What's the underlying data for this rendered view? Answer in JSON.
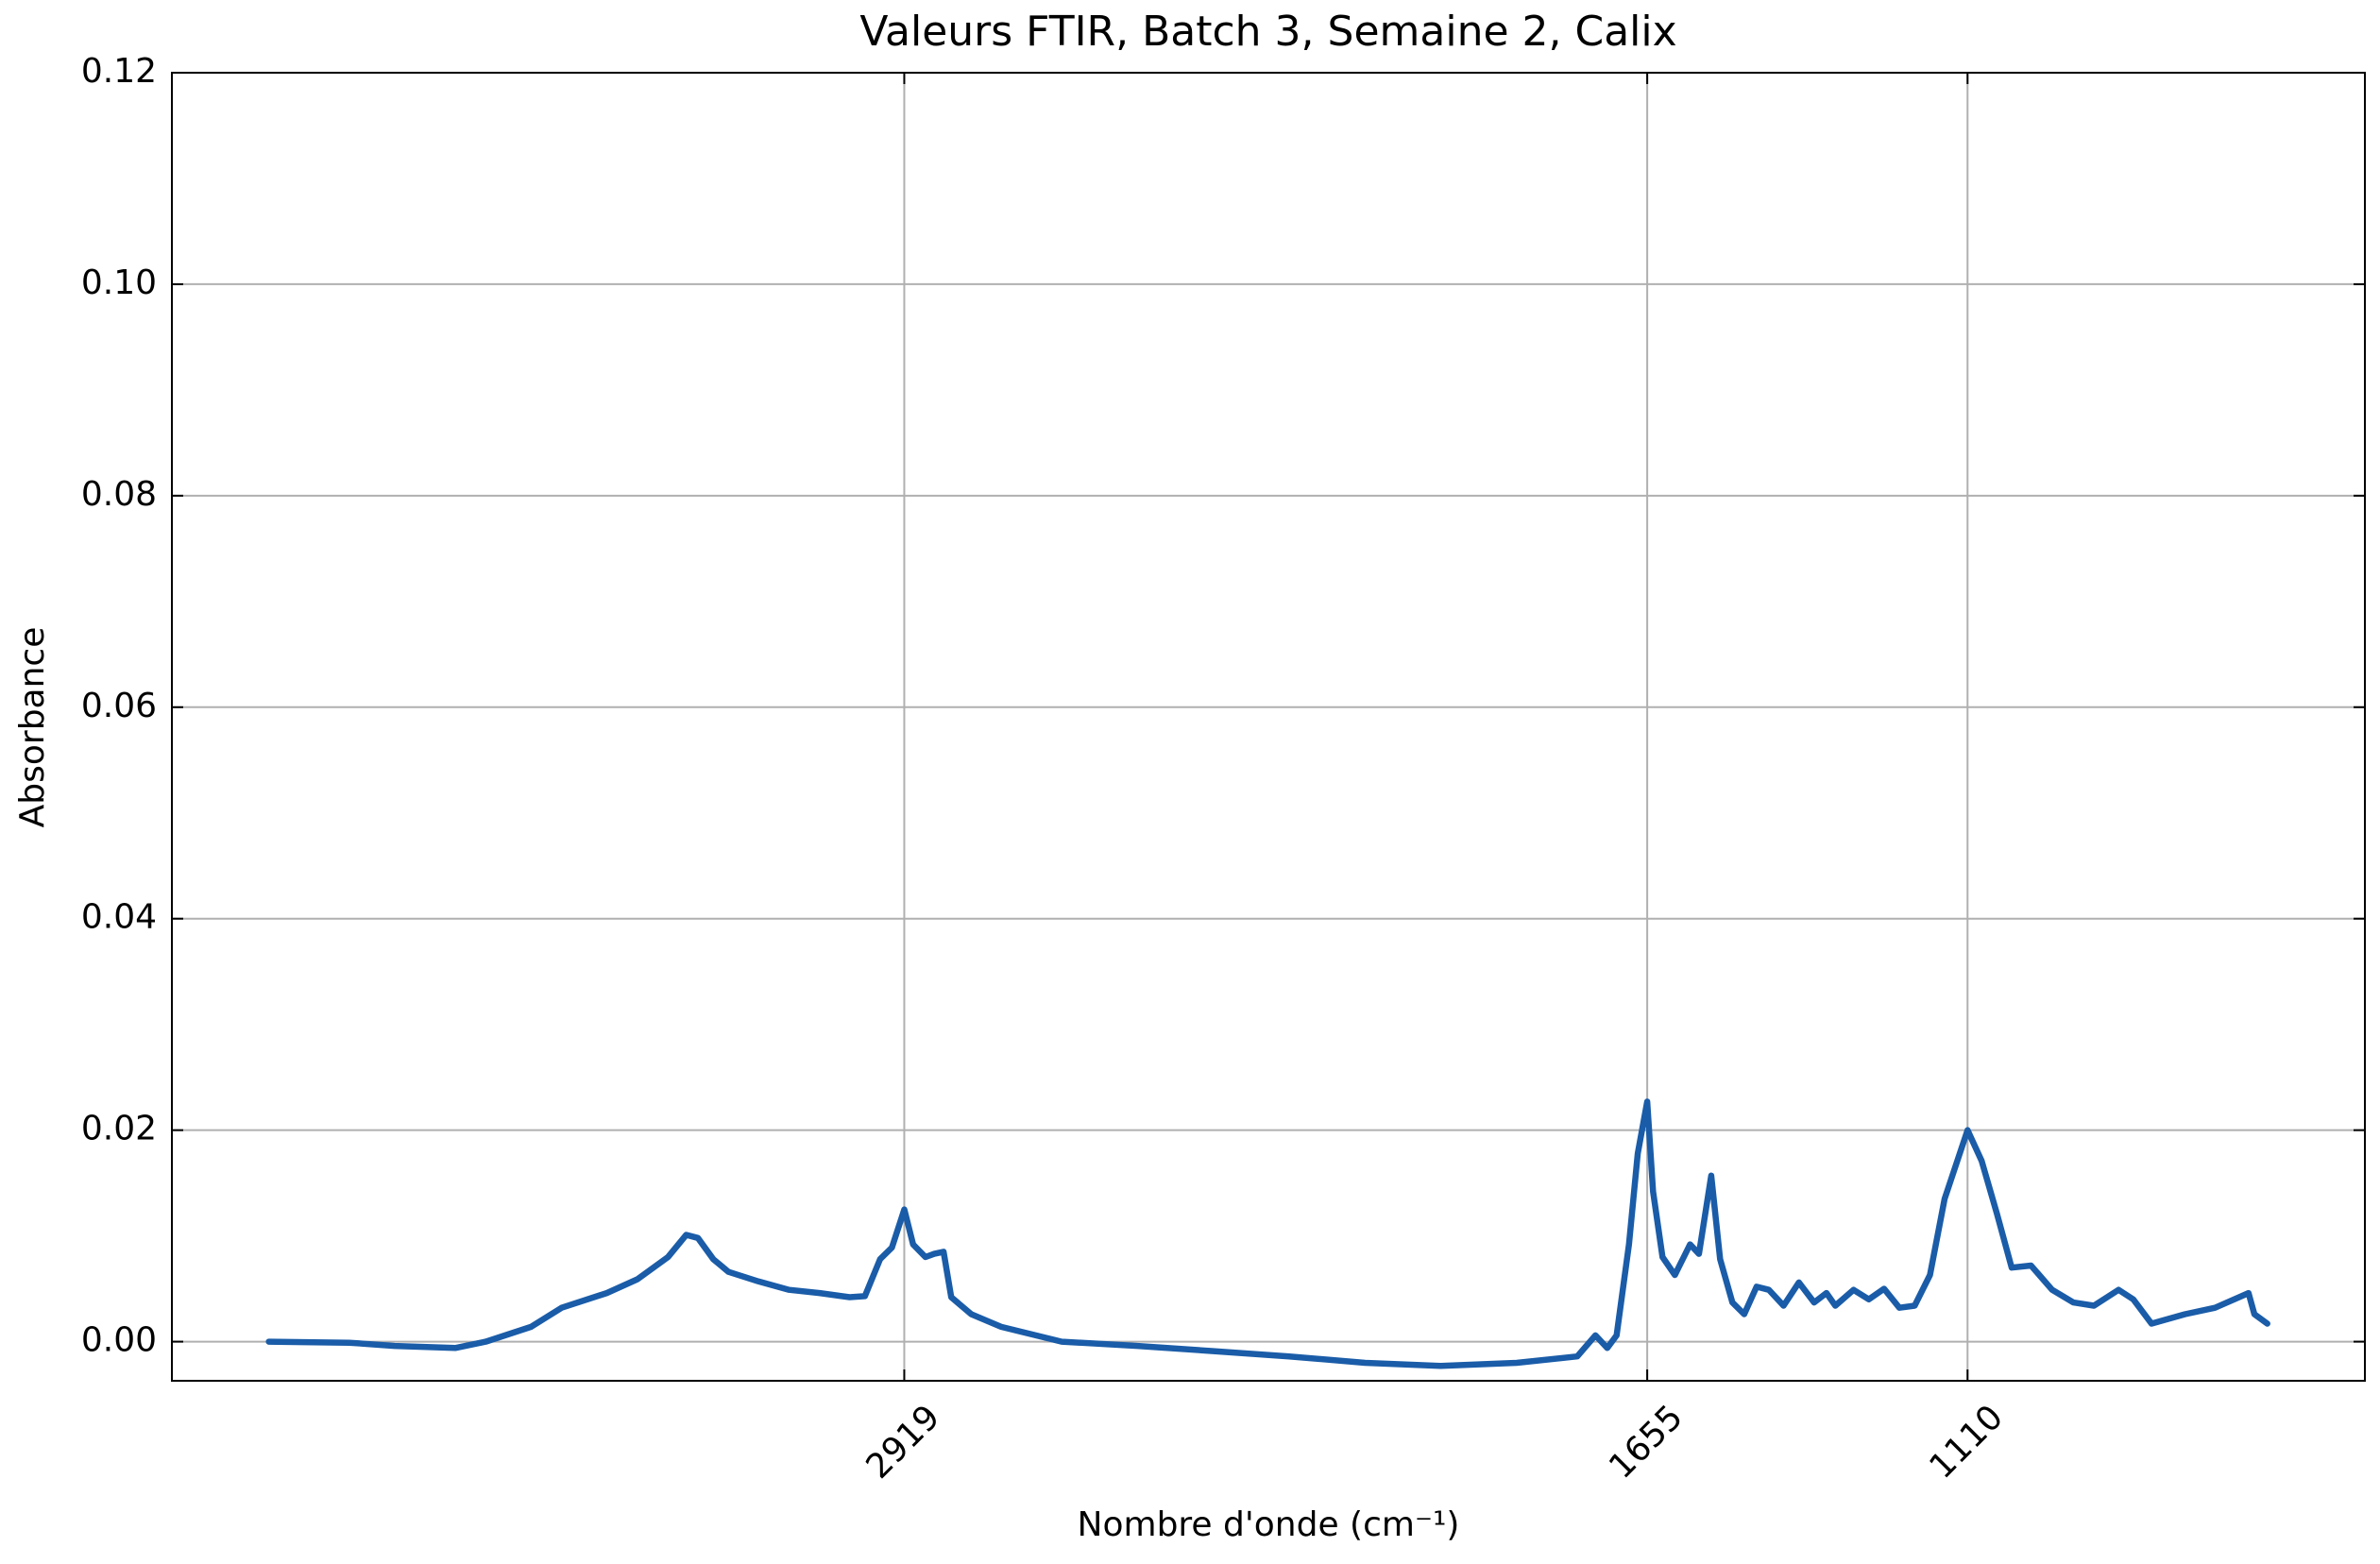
{
  "chart_data": {
    "type": "line",
    "title": "Valeurs FTIR, Batch 3, Semaine 2, Calix",
    "xlabel": "Nombre d'onde (cm⁻¹)",
    "ylabel": "Absorbance",
    "color": "#1a5ca8",
    "grid": true,
    "xlim": [
      4165,
      434
    ],
    "ylim": [
      -0.0037,
      0.12
    ],
    "xticks": [
      2919,
      1655,
      1110
    ],
    "yticks": [
      {
        "value": 0,
        "label": "0.00"
      },
      {
        "value": 0.02,
        "label": "0.02"
      },
      {
        "value": 0.04,
        "label": "0.04"
      },
      {
        "value": 0.06,
        "label": "0.06"
      },
      {
        "value": 0.08,
        "label": "0.08"
      },
      {
        "value": 0.1,
        "label": "0.10"
      },
      {
        "value": 0.12,
        "label": "0.12"
      }
    ],
    "x": [
      4000,
      3863,
      3786,
      3683,
      3631,
      3554,
      3502,
      3425,
      3373,
      3321,
      3290,
      3270,
      3244,
      3218,
      3167,
      3115,
      3063,
      3012,
      2986,
      2960,
      2940,
      2919,
      2904,
      2883,
      2868,
      2852,
      2839,
      2805,
      2754,
      2651,
      2522,
      2393,
      2264,
      2135,
      2006,
      1877,
      1774,
      1743,
      1723,
      1707,
      1686,
      1671,
      1655,
      1645,
      1629,
      1608,
      1582,
      1567,
      1546,
      1531,
      1510,
      1490,
      1469,
      1448,
      1423,
      1397,
      1371,
      1350,
      1335,
      1304,
      1278,
      1252,
      1226,
      1200,
      1174,
      1149,
      1110,
      1086,
      1060,
      1035,
      1002,
      966,
      930,
      895,
      853,
      828,
      797,
      740,
      689,
      632,
      622,
      600
    ],
    "values": [
      0.0,
      -0.0001,
      -0.0004,
      -0.0006,
      0.0,
      0.0014,
      0.0032,
      0.0046,
      0.0059,
      0.008,
      0.0101,
      0.0098,
      0.0078,
      0.0066,
      0.0057,
      0.0049,
      0.0046,
      0.0042,
      0.0043,
      0.0078,
      0.0089,
      0.0125,
      0.0092,
      0.008,
      0.0083,
      0.0085,
      0.0042,
      0.0026,
      0.0014,
      0.0,
      -0.0004,
      -0.0009,
      -0.0014,
      -0.002,
      -0.0023,
      -0.002,
      -0.0014,
      0.0006,
      -0.0006,
      0.0006,
      0.0092,
      0.0178,
      0.0227,
      0.0142,
      0.008,
      0.0063,
      0.0092,
      0.0083,
      0.0157,
      0.0078,
      0.0037,
      0.0026,
      0.0052,
      0.0049,
      0.0034,
      0.0056,
      0.0037,
      0.0046,
      0.0034,
      0.0049,
      0.004,
      0.005,
      0.0032,
      0.0034,
      0.0063,
      0.0135,
      0.02,
      0.0171,
      0.0121,
      0.007,
      0.0072,
      0.0049,
      0.0037,
      0.0034,
      0.0049,
      0.004,
      0.0017,
      0.0026,
      0.0032,
      0.0046,
      0.0026,
      0.0017
    ]
  }
}
